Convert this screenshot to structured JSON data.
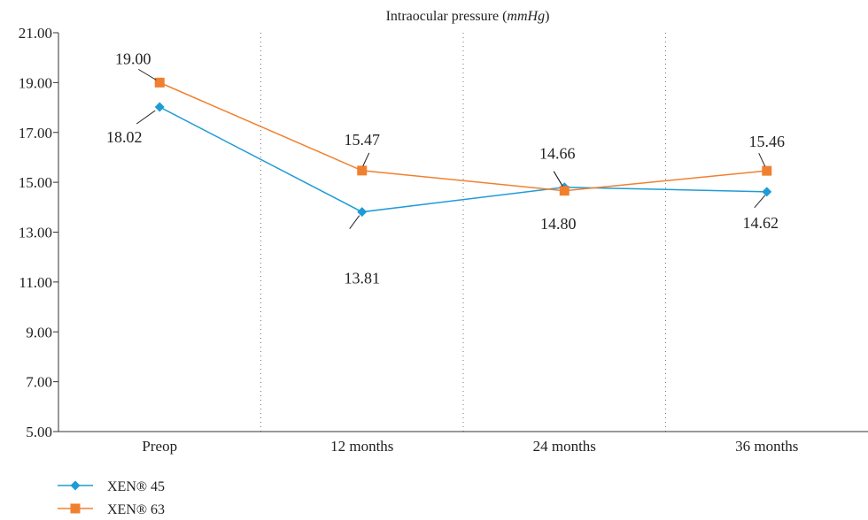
{
  "chart_data": {
    "type": "line",
    "title_main": "Intraocular pressure (",
    "title_unit": "mmHg",
    "title_close": ")",
    "categories": [
      "Preop",
      "12 months",
      "24 months",
      "36 months"
    ],
    "y_ticks": [
      "5.00",
      "7.00",
      "9.00",
      "11.00",
      "13.00",
      "15.00",
      "17.00",
      "19.00",
      "21.00"
    ],
    "ylim": [
      5,
      21
    ],
    "grid": "dotted vertical separators between categories",
    "legend_position": "bottom-left",
    "series": [
      {
        "name": "XEN® 45",
        "color": "#1f9bd5",
        "marker": "diamond",
        "values": [
          18.02,
          13.81,
          14.8,
          14.62
        ],
        "labels": [
          "18.02",
          "13.81",
          "14.80",
          "14.62"
        ]
      },
      {
        "name": "XEN® 63",
        "color": "#f08030",
        "marker": "square",
        "values": [
          19.0,
          15.47,
          14.66,
          15.46
        ],
        "labels": [
          "19.00",
          "15.47",
          "14.66",
          "15.46"
        ]
      }
    ]
  }
}
